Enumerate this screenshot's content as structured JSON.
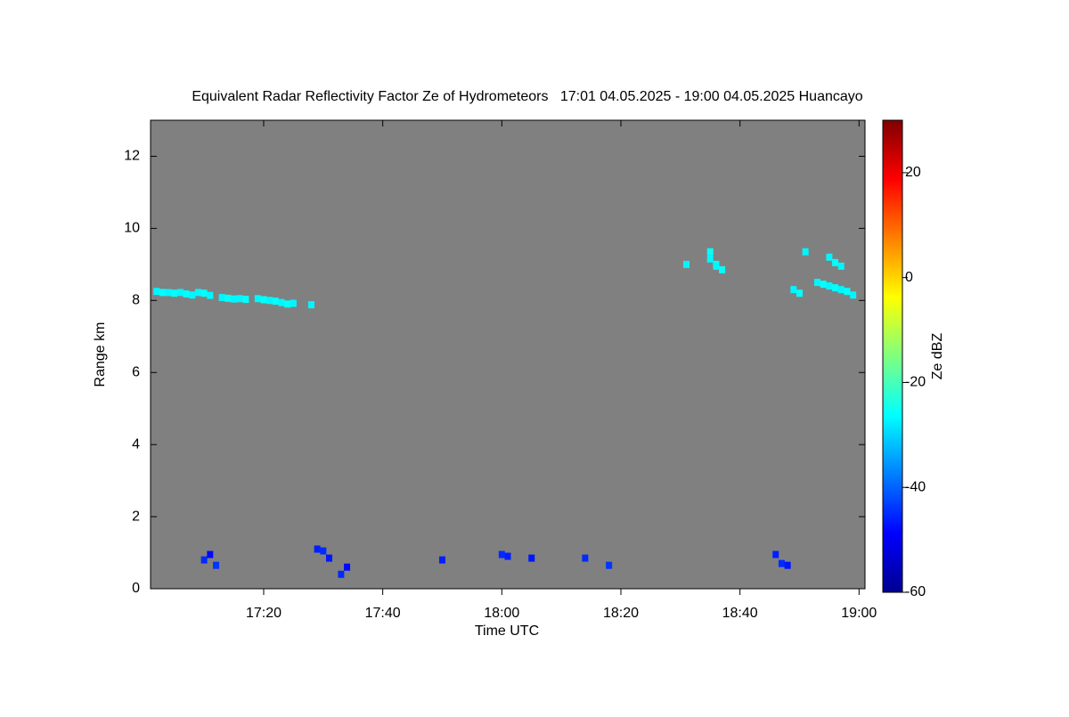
{
  "chart_data": {
    "type": "heatmap",
    "title": "Equivalent Radar Reflectivity Factor Ze of Hydrometeors   17:01 04.05.2025 - 19:00 04.05.2025 Huancayo",
    "x_label": "Time UTC",
    "y_label": "Range km",
    "colorbar_label": "Ze dBZ",
    "background": "#808080",
    "xlim": [
      1021,
      1141
    ],
    "xticks": [
      {
        "value": 1040,
        "label": "17:20"
      },
      {
        "value": 1060,
        "label": "17:40"
      },
      {
        "value": 1080,
        "label": "18:00"
      },
      {
        "value": 1100,
        "label": "18:20"
      },
      {
        "value": 1120,
        "label": "18:40"
      },
      {
        "value": 1140,
        "label": "19:00"
      }
    ],
    "ylim": [
      0,
      13
    ],
    "yticks": [
      0,
      2,
      4,
      6,
      8,
      10,
      12
    ],
    "zlim": [
      -60,
      30
    ],
    "zticks": [
      -60,
      -40,
      -20,
      0,
      20
    ],
    "x": [
      1022,
      1023,
      1024,
      1025,
      1026,
      1027,
      1028,
      1029,
      1030,
      1031,
      1033,
      1034,
      1035,
      1036,
      1037,
      1039,
      1040,
      1041,
      1042,
      1043,
      1044,
      1045,
      1048,
      1111,
      1115,
      1115,
      1116,
      1116,
      1117,
      1129,
      1130,
      1131,
      1133,
      1134,
      1135,
      1136,
      1135,
      1136,
      1137,
      1137,
      1138,
      1139,
      1030,
      1031,
      1032,
      1049,
      1050,
      1051,
      1053,
      1054,
      1070,
      1080,
      1081,
      1085,
      1094,
      1098,
      1126,
      1127,
      1128
    ],
    "y": [
      8.25,
      8.22,
      8.22,
      8.2,
      8.22,
      8.18,
      8.15,
      8.22,
      8.2,
      8.14,
      8.08,
      8.06,
      8.04,
      8.05,
      8.03,
      8.05,
      8.02,
      8.0,
      7.98,
      7.94,
      7.9,
      7.92,
      7.88,
      9.0,
      9.35,
      9.15,
      9.0,
      8.95,
      8.85,
      8.3,
      8.2,
      9.35,
      8.5,
      8.45,
      8.4,
      8.35,
      9.2,
      9.05,
      8.95,
      8.3,
      8.25,
      8.15,
      0.8,
      0.95,
      0.65,
      1.1,
      1.05,
      0.85,
      0.4,
      0.6,
      0.8,
      0.95,
      0.9,
      0.85,
      0.85,
      0.65,
      0.95,
      0.7,
      0.65
    ],
    "values": [
      -27,
      -26,
      -27,
      -26,
      -27,
      -26,
      -27,
      -27,
      -26,
      -27,
      -27,
      -26,
      -27,
      -27,
      -26,
      -27,
      -26,
      -27,
      -26,
      -27,
      -26,
      -27,
      -27,
      -27,
      -26,
      -27,
      -26,
      -27,
      -26,
      -27,
      -26,
      -27,
      -27,
      -26,
      -27,
      -26,
      -27,
      -26,
      -27,
      -27,
      -26,
      -27,
      -45,
      -48,
      -44,
      -46,
      -45,
      -47,
      -45,
      -48,
      -46,
      -45,
      -46,
      -47,
      -45,
      -44,
      -46,
      -45,
      -47
    ]
  }
}
